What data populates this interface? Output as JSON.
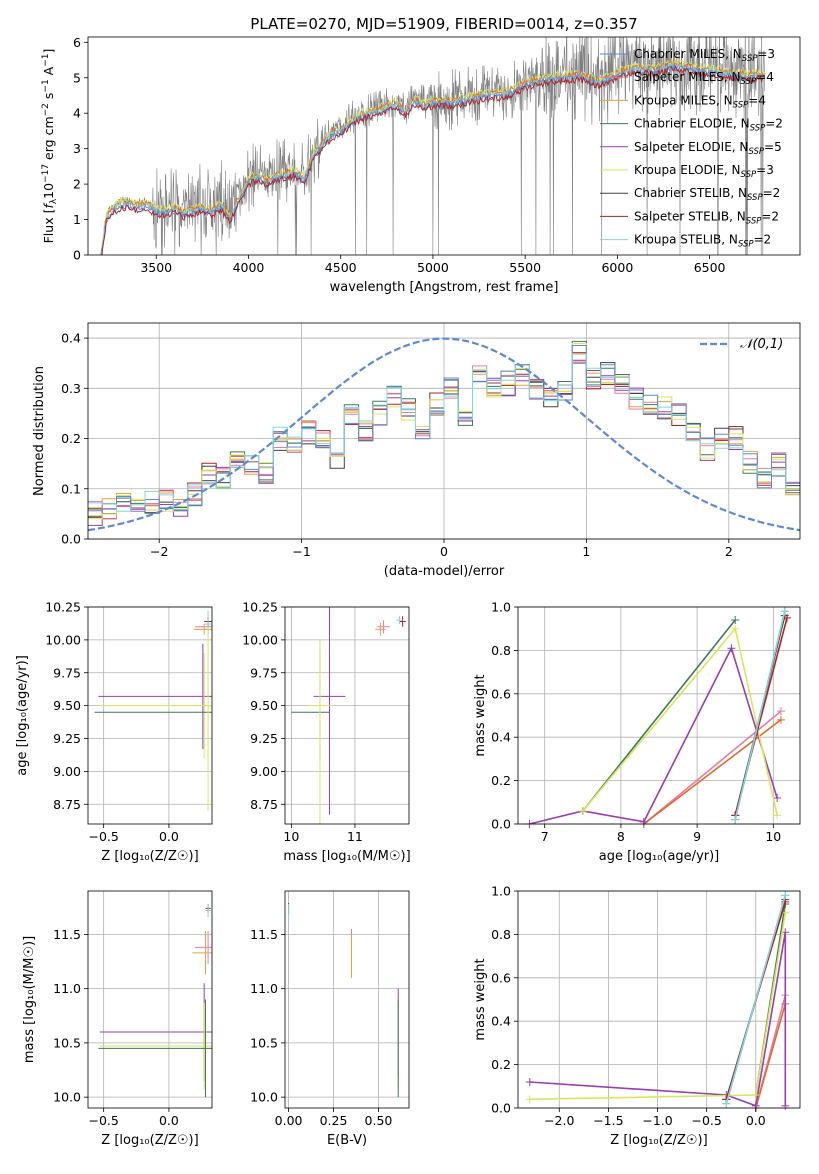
{
  "figure": {
    "title": "PLATE=0270, MJD=51909, FIBERID=0014, z=0.357"
  },
  "colors": {
    "chabrier_miles": "#5b8ad6",
    "salpeter_miles": "#e87ca6",
    "kroupa_miles": "#e8a040",
    "chabrier_elodie": "#3d7a5a",
    "salpeter_elodie": "#9a3db3",
    "kroupa_elodie": "#d6e85a",
    "chabrier_stelib": "#404040",
    "salpeter_stelib": "#b22020",
    "kroupa_stelib": "#7fd6dc",
    "data": "#808080",
    "gaussian": "#5b8ad6",
    "orange_model": "#e26a2c"
  },
  "chart_data": [
    {
      "id": "spectrum",
      "type": "line",
      "xlabel": "wavelength [Angstrom, rest frame]",
      "ylabel_parts": {
        "main": "Flux [",
        "f": "f",
        "sub": "λ",
        "rest": "10",
        "sup1": "−17",
        "rest2": " erg cm",
        "sup2": "−2",
        "rest3": " s",
        "sup3": "−1",
        "rest4": " A",
        "sup4": "−1",
        "end": "]"
      },
      "xlim": [
        3130,
        6990
      ],
      "ylim": [
        0,
        6.15
      ],
      "xticks": [
        3500,
        4000,
        4500,
        5000,
        5500,
        6000,
        6500
      ],
      "yticks": [
        0,
        1,
        2,
        3,
        4,
        5,
        6
      ],
      "continuum_points": {
        "x": [
          3200,
          3230,
          3270,
          3300,
          3350,
          3400,
          3450,
          3500,
          3550,
          3600,
          3650,
          3700,
          3750,
          3800,
          3850,
          3900,
          3950,
          4000,
          4050,
          4100,
          4150,
          4200,
          4250,
          4300,
          4350,
          4400,
          4450,
          4500,
          4550,
          4600,
          4700,
          4800,
          4850,
          4900,
          4950,
          5000,
          5100,
          5200,
          5300,
          5400,
          5500,
          5600,
          5700,
          5800,
          5900,
          6000,
          6100,
          6200,
          6300,
          6400,
          6500,
          6600,
          6700,
          6800
        ],
        "y": [
          0.0,
          1.15,
          1.4,
          1.5,
          1.55,
          1.45,
          1.5,
          1.35,
          1.3,
          1.4,
          1.25,
          1.35,
          1.4,
          1.3,
          1.5,
          1.1,
          1.7,
          2.2,
          2.3,
          2.15,
          2.3,
          2.35,
          2.45,
          2.2,
          2.9,
          3.2,
          3.5,
          3.6,
          3.8,
          4.0,
          4.15,
          4.35,
          4.1,
          4.45,
          4.3,
          4.4,
          4.4,
          4.5,
          4.6,
          4.65,
          4.9,
          5.05,
          5.1,
          5.15,
          4.95,
          5.2,
          5.35,
          5.3,
          5.45,
          5.35,
          5.3,
          5.2,
          5.15,
          5.15
        ]
      },
      "series_names": [
        "Chabrier MILES",
        "Salpeter MILES",
        "Kroupa MILES",
        "Chabrier ELODIE",
        "Salpeter ELODIE",
        "Kroupa ELODIE",
        "Chabrier STELIB",
        "Salpeter STELIB",
        "Kroupa STELIB"
      ],
      "legend": [
        {
          "label": "Chabrier MILES, N",
          "sub": "SSP",
          "tail": "=3",
          "color": "chabrier_miles"
        },
        {
          "label": "Salpeter MILES, N",
          "sub": "SSP",
          "tail": "=4",
          "color": "salpeter_miles"
        },
        {
          "label": "Kroupa MILES, N",
          "sub": "SSP",
          "tail": "=4",
          "color": "kroupa_miles"
        },
        {
          "label": "Chabrier ELODIE, N",
          "sub": "SSP",
          "tail": "=2",
          "color": "chabrier_elodie"
        },
        {
          "label": "Salpeter ELODIE, N",
          "sub": "SSP",
          "tail": "=5",
          "color": "salpeter_elodie"
        },
        {
          "label": "Kroupa ELODIE, N",
          "sub": "SSP",
          "tail": "=3",
          "color": "kroupa_elodie"
        },
        {
          "label": "Chabrier STELIB, N",
          "sub": "SSP",
          "tail": "=2",
          "color": "chabrier_stelib"
        },
        {
          "label": "Salpeter STELIB, N",
          "sub": "SSP",
          "tail": "=2",
          "color": "salpeter_stelib"
        },
        {
          "label": "Kroupa STELIB, N",
          "sub": "SSP",
          "tail": "=2",
          "color": "kroupa_stelib"
        }
      ],
      "legend_location": "upper right"
    },
    {
      "id": "residuals",
      "type": "line",
      "xlabel": "(data-model)/error",
      "ylabel": "Normed distribution",
      "xlim": [
        -2.5,
        2.5
      ],
      "ylim": [
        0,
        0.43
      ],
      "xticks": [
        -2,
        -1,
        0,
        1,
        2
      ],
      "yticks": [
        0.0,
        0.1,
        0.2,
        0.3,
        0.4
      ],
      "xtick_labels": [
        "−2",
        "−1",
        "0",
        "1",
        "2"
      ],
      "ytick_labels": [
        "0.0",
        "0.1",
        "0.2",
        "0.3",
        "0.4"
      ],
      "grid": true,
      "bin_width": 0.1,
      "bin_start": -2.5,
      "base_histogram": [
        0.05,
        0.06,
        0.07,
        0.06,
        0.07,
        0.08,
        0.07,
        0.09,
        0.13,
        0.12,
        0.16,
        0.15,
        0.13,
        0.2,
        0.18,
        0.21,
        0.2,
        0.15,
        0.25,
        0.22,
        0.25,
        0.28,
        0.26,
        0.22,
        0.27,
        0.3,
        0.25,
        0.33,
        0.3,
        0.31,
        0.33,
        0.3,
        0.28,
        0.3,
        0.37,
        0.32,
        0.33,
        0.31,
        0.28,
        0.27,
        0.26,
        0.25,
        0.21,
        0.18,
        0.2,
        0.2,
        0.15,
        0.12,
        0.15,
        0.1
      ],
      "gaussian_label": "𝒩(0,1)",
      "legend_location": "upper right"
    },
    {
      "id": "age_vs_Z",
      "type": "scatter",
      "xlabel": "Z [log₁₀(Z/Z☉)]",
      "ylabel": "age  [log₁₀(age/yr)]",
      "xlim": [
        -0.62,
        0.33
      ],
      "ylim": [
        8.6,
        10.25
      ],
      "xticks": [
        -0.5,
        0.0
      ],
      "yticks": [
        8.75,
        9.0,
        9.25,
        9.5,
        9.75,
        10.0,
        10.25
      ],
      "xtick_labels": [
        "−0.5",
        "0.0"
      ],
      "ytick_labels": [
        "8.75",
        "9.00",
        "9.25",
        "9.50",
        "9.75",
        "10.00",
        "10.25"
      ],
      "grid": true,
      "errorbars": [
        {
          "x": 0.3,
          "y": 10.1,
          "xerr": 0.1,
          "yerr": 0.05,
          "color": "salpeter_miles"
        },
        {
          "x": 0.27,
          "y": 10.08,
          "xerr": 0.08,
          "yerr": 0.04,
          "color": "kroupa_miles"
        },
        {
          "x": 0.3,
          "y": 10.14,
          "xerr": 0.03,
          "yerr": 0.04,
          "color": "salpeter_stelib"
        },
        {
          "x": 0.3,
          "y": 10.12,
          "xerr": 0.03,
          "yerr": 0.1,
          "color": "kroupa_stelib"
        },
        {
          "x": 0.26,
          "y": 9.57,
          "xerr": 0.8,
          "yerr": 0.4,
          "color": "salpeter_elodie"
        },
        {
          "x": 0.27,
          "y": 9.5,
          "xerr": 0.8,
          "yerr": 0.4,
          "color": "kroupa_elodie"
        },
        {
          "x": 0.28,
          "y": 9.45,
          "xerr": 0.85,
          "yerr": 0.0,
          "color": "chabrier_elodie"
        },
        {
          "x": 0.3,
          "y": 9.4,
          "xerr": 0.0,
          "yerr": 0.7,
          "color": "kroupa_elodie"
        }
      ]
    },
    {
      "id": "age_vs_mass",
      "type": "scatter",
      "xlabel": "mass [log₁₀(M/M☉)]",
      "ylabel": "",
      "xlim": [
        9.9,
        11.85
      ],
      "ylim": [
        8.6,
        10.25
      ],
      "xticks": [
        10,
        11
      ],
      "yticks": [
        8.75,
        9.0,
        9.25,
        9.5,
        9.75,
        10.0,
        10.25
      ],
      "xtick_labels": [
        "10",
        "11"
      ],
      "ytick_labels": [
        "8.75",
        "9.00",
        "9.25",
        "9.50",
        "9.75",
        "10.00",
        "10.25"
      ],
      "grid": true,
      "errorbars": [
        {
          "x": 11.45,
          "y": 10.1,
          "xerr": 0.1,
          "yerr": 0.05,
          "color": "salpeter_miles"
        },
        {
          "x": 11.4,
          "y": 10.08,
          "xerr": 0.08,
          "yerr": 0.05,
          "color": "kroupa_miles"
        },
        {
          "x": 11.75,
          "y": 10.14,
          "xerr": 0.05,
          "yerr": 0.04,
          "color": "salpeter_stelib"
        },
        {
          "x": 11.7,
          "y": 10.15,
          "xerr": 0.05,
          "yerr": 0.03,
          "color": "kroupa_stelib"
        },
        {
          "x": 10.6,
          "y": 9.57,
          "xerr": 0.25,
          "yerr": 0.9,
          "color": "salpeter_elodie"
        },
        {
          "x": 10.45,
          "y": 9.5,
          "xerr": 0.2,
          "yerr": 0.4,
          "color": "kroupa_elodie"
        },
        {
          "x": 10.3,
          "y": 9.45,
          "xerr": 0.3,
          "yerr": 0.0,
          "color": "chabrier_elodie"
        },
        {
          "x": 10.45,
          "y": 9.3,
          "xerr": 0.0,
          "yerr": 0.7,
          "color": "kroupa_elodie"
        }
      ]
    },
    {
      "id": "massweight_vs_age",
      "type": "line",
      "xlabel": "age  [log₁₀(age/yr)]",
      "ylabel": "mass weight",
      "xlim": [
        6.65,
        10.35
      ],
      "ylim": [
        0,
        1.0
      ],
      "xticks": [
        7,
        8,
        9,
        10
      ],
      "yticks": [
        0.0,
        0.2,
        0.4,
        0.6,
        0.8,
        1.0
      ],
      "xtick_labels": [
        "7",
        "8",
        "9",
        "10"
      ],
      "ytick_labels": [
        "0.0",
        "0.2",
        "0.4",
        "0.6",
        "0.8",
        "1.0"
      ],
      "grid": true,
      "series": [
        {
          "name": "Chabrier MILES",
          "color": "chabrier_miles",
          "x": [
            9.5,
            10.15
          ],
          "y": [
            0.02,
            0.98
          ]
        },
        {
          "name": "Salpeter MILES",
          "color": "salpeter_miles",
          "x": [
            8.3,
            10.1
          ],
          "y": [
            0.0,
            0.52
          ]
        },
        {
          "name": "Kroupa MILES",
          "color": "orange_model",
          "x": [
            8.3,
            10.1
          ],
          "y": [
            0.0,
            0.48
          ]
        },
        {
          "name": "Chabrier ELODIE",
          "color": "chabrier_elodie",
          "x": [
            7.5,
            9.5
          ],
          "y": [
            0.06,
            0.94
          ]
        },
        {
          "name": "Salpeter ELODIE",
          "color": "salpeter_elodie",
          "x": [
            6.8,
            7.5,
            8.3,
            9.45,
            10.05
          ],
          "y": [
            0.0,
            0.06,
            0.01,
            0.81,
            0.12
          ]
        },
        {
          "name": "Kroupa ELODIE",
          "color": "kroupa_elodie",
          "x": [
            7.5,
            9.5,
            10.05
          ],
          "y": [
            0.06,
            0.9,
            0.04
          ]
        },
        {
          "name": "Chabrier STELIB",
          "color": "chabrier_stelib",
          "x": [
            9.5,
            10.15
          ],
          "y": [
            0.04,
            0.96
          ]
        },
        {
          "name": "Salpeter STELIB",
          "color": "salpeter_stelib",
          "x": [
            9.5,
            10.18
          ],
          "y": [
            0.04,
            0.95
          ]
        },
        {
          "name": "Kroupa STELIB",
          "color": "kroupa_stelib",
          "x": [
            9.5,
            10.15
          ],
          "y": [
            0.02,
            0.98
          ]
        }
      ]
    },
    {
      "id": "mass_vs_Z",
      "type": "scatter",
      "xlabel": "Z [log₁₀(Z/Z☉)]",
      "ylabel": "mass [log₁₀(M/M☉)]",
      "xlim": [
        -0.62,
        0.33
      ],
      "ylim": [
        9.9,
        11.9
      ],
      "xticks": [
        -0.5,
        0.0
      ],
      "yticks": [
        10.0,
        10.5,
        11.0,
        11.5
      ],
      "xtick_labels": [
        "−0.5",
        "0.0"
      ],
      "ytick_labels": [
        "10.0",
        "10.5",
        "11.0",
        "11.5"
      ],
      "grid": true,
      "errorbars": [
        {
          "x": 0.3,
          "y": 11.38,
          "xerr": 0.1,
          "yerr": 0.15,
          "color": "salpeter_miles"
        },
        {
          "x": 0.28,
          "y": 11.33,
          "xerr": 0.1,
          "yerr": 0.2,
          "color": "kroupa_miles"
        },
        {
          "x": 0.3,
          "y": 11.74,
          "xerr": 0.02,
          "yerr": 0.04,
          "color": "salpeter_stelib"
        },
        {
          "x": 0.3,
          "y": 11.72,
          "xerr": 0.02,
          "yerr": 0.06,
          "color": "kroupa_stelib"
        },
        {
          "x": 0.27,
          "y": 10.6,
          "xerr": 0.8,
          "yerr": 0.45,
          "color": "salpeter_elodie"
        },
        {
          "x": 0.27,
          "y": 10.47,
          "xerr": 0.8,
          "yerr": 0.4,
          "color": "kroupa_elodie"
        },
        {
          "x": 0.28,
          "y": 10.45,
          "xerr": 0.82,
          "yerr": 0.45,
          "color": "chabrier_elodie"
        }
      ]
    },
    {
      "id": "mass_vs_ebv",
      "type": "scatter",
      "xlabel": "E(B-V)",
      "ylabel": "",
      "xlim": [
        -0.02,
        0.67
      ],
      "ylim": [
        9.9,
        11.9
      ],
      "xticks": [
        0.0,
        0.25,
        0.5
      ],
      "yticks": [
        10.0,
        10.5,
        11.0,
        11.5
      ],
      "xtick_labels": [
        "0.00",
        "0.25",
        "0.50"
      ],
      "ytick_labels": [
        "10.0",
        "10.5",
        "11.0",
        "11.5"
      ],
      "grid": true,
      "errorbars": [
        {
          "x": 0.0,
          "y": 11.74,
          "xerr": 0.0,
          "yerr": 0.05,
          "color": "salpeter_stelib"
        },
        {
          "x": 0.0,
          "y": 11.7,
          "xerr": 0.0,
          "yerr": 0.08,
          "color": "kroupa_stelib"
        },
        {
          "x": 0.35,
          "y": 11.35,
          "xerr": 0.0,
          "yerr": 0.2,
          "color": "salpeter_miles"
        },
        {
          "x": 0.35,
          "y": 11.3,
          "xerr": 0.0,
          "yerr": 0.2,
          "color": "kroupa_miles"
        },
        {
          "x": 0.61,
          "y": 10.6,
          "xerr": 0.0,
          "yerr": 0.4,
          "color": "salpeter_elodie"
        },
        {
          "x": 0.61,
          "y": 10.47,
          "xerr": 0.0,
          "yerr": 0.4,
          "color": "kroupa_elodie"
        },
        {
          "x": 0.61,
          "y": 10.45,
          "xerr": 0.0,
          "yerr": 0.45,
          "color": "chabrier_elodie"
        }
      ]
    },
    {
      "id": "massweight_vs_Z",
      "type": "line",
      "xlabel": "Z [log₁₀(Z/Z☉)]",
      "ylabel": "mass weight",
      "xlim": [
        -2.42,
        0.45
      ],
      "ylim": [
        0,
        1.0
      ],
      "xticks": [
        -2.0,
        -1.5,
        -1.0,
        -0.5,
        0.0
      ],
      "yticks": [
        0.0,
        0.2,
        0.4,
        0.6,
        0.8,
        1.0
      ],
      "xtick_labels": [
        "−2.0",
        "−1.5",
        "−1.0",
        "−0.5",
        "0.0"
      ],
      "ytick_labels": [
        "0.0",
        "0.2",
        "0.4",
        "0.6",
        "0.8",
        "1.0"
      ],
      "grid": true,
      "series": [
        {
          "name": "Chabrier MILES",
          "color": "chabrier_miles",
          "x": [
            -0.3,
            0.3
          ],
          "y": [
            0.02,
            0.98
          ]
        },
        {
          "name": "Salpeter MILES",
          "color": "salpeter_miles",
          "x": [
            0.0,
            0.3
          ],
          "y": [
            0.0,
            0.52
          ]
        },
        {
          "name": "Kroupa MILES",
          "color": "orange_model",
          "x": [
            0.0,
            0.3
          ],
          "y": [
            0.0,
            0.48
          ]
        },
        {
          "name": "Chabrier ELODIE",
          "color": "chabrier_elodie",
          "x": [
            0.0,
            0.3
          ],
          "y": [
            0.06,
            0.94
          ]
        },
        {
          "name": "Salpeter ELODIE",
          "color": "salpeter_elodie",
          "x": [
            -2.3,
            -0.3,
            0.0,
            0.3,
            0.3
          ],
          "y": [
            0.12,
            0.06,
            0.01,
            0.81,
            0.01
          ]
        },
        {
          "name": "Kroupa ELODIE",
          "color": "kroupa_elodie",
          "x": [
            -2.3,
            0.0,
            0.3
          ],
          "y": [
            0.04,
            0.06,
            0.9
          ]
        },
        {
          "name": "Chabrier STELIB",
          "color": "chabrier_stelib",
          "x": [
            -0.3,
            0.3
          ],
          "y": [
            0.04,
            0.96
          ]
        },
        {
          "name": "Salpeter STELIB",
          "color": "salpeter_stelib",
          "x": [
            -0.3,
            0.3
          ],
          "y": [
            0.04,
            0.95
          ]
        },
        {
          "name": "Kroupa STELIB",
          "color": "kroupa_stelib",
          "x": [
            -0.3,
            0.3
          ],
          "y": [
            0.02,
            0.98
          ]
        }
      ]
    }
  ]
}
